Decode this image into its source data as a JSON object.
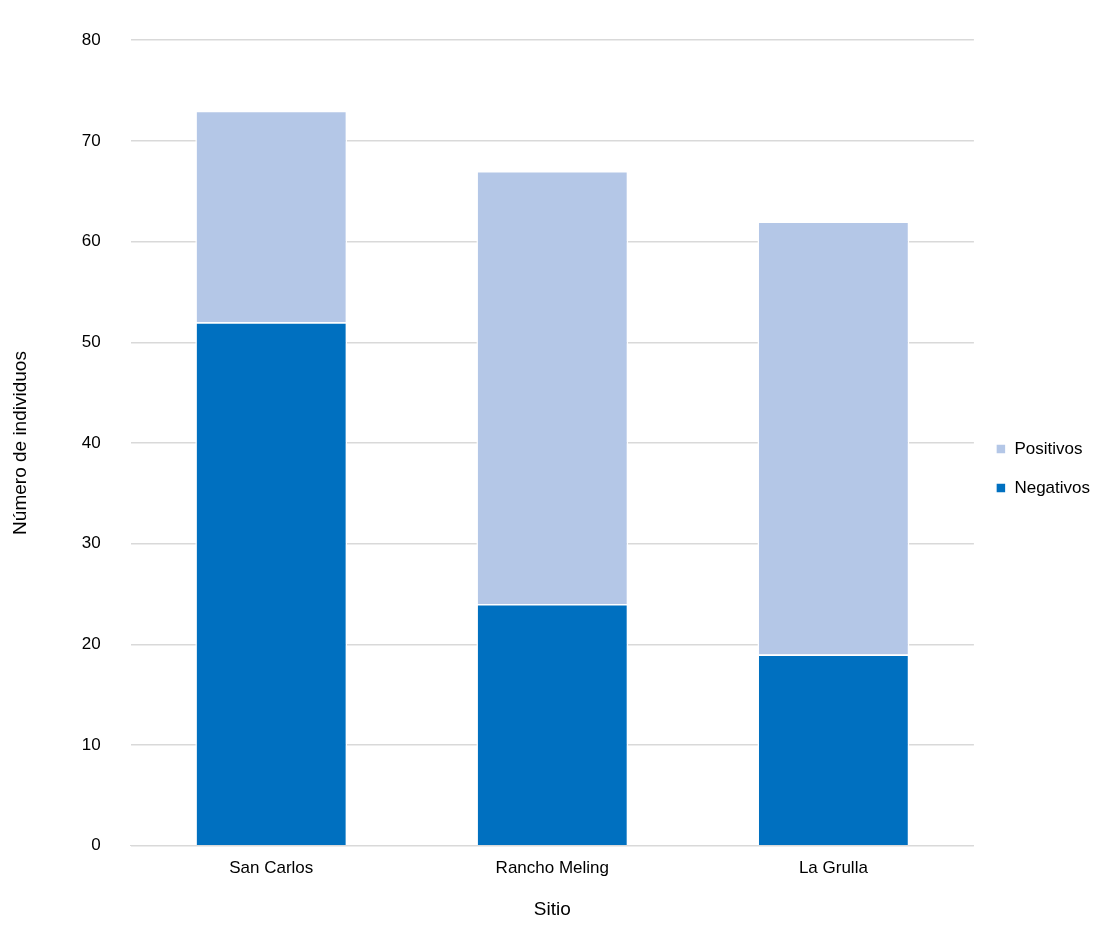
{
  "chart_data": {
    "type": "bar",
    "stacked": true,
    "xlabel": "Sitio",
    "ylabel": "Número de individuos",
    "categories": [
      "San Carlos",
      "Rancho Meling",
      "La Grulla"
    ],
    "series": [
      {
        "name": "Negativos",
        "color": "#0070c0",
        "values": [
          52,
          24,
          19
        ]
      },
      {
        "name": "Positivos",
        "color": "#b4c7e7",
        "values": [
          21,
          43,
          43
        ]
      }
    ],
    "ylim": [
      0,
      80
    ],
    "yticks": [
      0,
      10,
      20,
      30,
      40,
      50,
      60,
      70,
      80
    ],
    "grid": "y",
    "legend": "right"
  }
}
